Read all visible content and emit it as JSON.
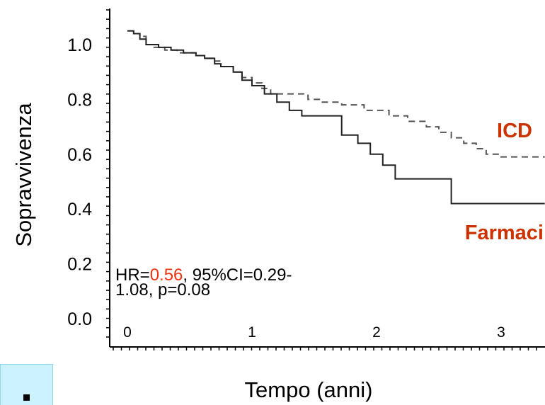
{
  "chart_data": {
    "type": "line",
    "xlabel": "Tempo (anni)",
    "ylabel": "Sopravvivenza",
    "xlim": [
      0,
      3.35
    ],
    "ylim": [
      0,
      1.05
    ],
    "x_ticks": [
      "0",
      "1",
      "2",
      "3"
    ],
    "y_ticks": [
      "0.0",
      "0.2",
      "0.4",
      "0.6",
      "0.8",
      "1.0"
    ],
    "series": [
      {
        "name": "ICD",
        "style": "dashed",
        "color": "#555555",
        "label_color": "#cc3300",
        "points": [
          [
            0.0,
            1.05
          ],
          [
            0.05,
            1.04
          ],
          [
            0.1,
            1.03
          ],
          [
            0.15,
            1.0
          ],
          [
            0.2,
            0.99
          ],
          [
            0.3,
            0.98
          ],
          [
            0.4,
            0.97
          ],
          [
            0.5,
            0.97
          ],
          [
            0.55,
            0.96
          ],
          [
            0.62,
            0.95
          ],
          [
            0.7,
            0.94
          ],
          [
            0.75,
            0.92
          ],
          [
            0.85,
            0.9
          ],
          [
            0.92,
            0.88
          ],
          [
            1.0,
            0.86
          ],
          [
            1.08,
            0.84
          ],
          [
            1.15,
            0.82
          ],
          [
            1.3,
            0.82
          ],
          [
            1.45,
            0.8
          ],
          [
            1.55,
            0.79
          ],
          [
            1.65,
            0.79
          ],
          [
            1.72,
            0.78
          ],
          [
            1.8,
            0.78
          ],
          [
            1.9,
            0.76
          ],
          [
            2.1,
            0.74
          ],
          [
            2.25,
            0.72
          ],
          [
            2.4,
            0.7
          ],
          [
            2.5,
            0.68
          ],
          [
            2.6,
            0.66
          ],
          [
            2.7,
            0.64
          ],
          [
            2.8,
            0.62
          ],
          [
            2.88,
            0.6
          ],
          [
            3.0,
            0.59
          ],
          [
            3.35,
            0.59
          ]
        ]
      },
      {
        "name": "Farmaci",
        "style": "solid",
        "color": "#222222",
        "label_color": "#cc3300",
        "points": [
          [
            0.0,
            1.05
          ],
          [
            0.05,
            1.04
          ],
          [
            0.1,
            1.02
          ],
          [
            0.15,
            1.0
          ],
          [
            0.25,
            0.99
          ],
          [
            0.35,
            0.98
          ],
          [
            0.45,
            0.97
          ],
          [
            0.55,
            0.96
          ],
          [
            0.62,
            0.95
          ],
          [
            0.7,
            0.93
          ],
          [
            0.75,
            0.92
          ],
          [
            0.85,
            0.9
          ],
          [
            0.92,
            0.87
          ],
          [
            1.0,
            0.85
          ],
          [
            1.1,
            0.82
          ],
          [
            1.2,
            0.79
          ],
          [
            1.3,
            0.76
          ],
          [
            1.4,
            0.74
          ],
          [
            1.65,
            0.74
          ],
          [
            1.72,
            0.67
          ],
          [
            1.85,
            0.64
          ],
          [
            1.95,
            0.6
          ],
          [
            2.05,
            0.56
          ],
          [
            2.15,
            0.51
          ],
          [
            2.55,
            0.51
          ],
          [
            2.6,
            0.42
          ],
          [
            3.35,
            0.42
          ]
        ]
      }
    ],
    "annotation": {
      "line1_prefix": "HR=",
      "line1_hr": "0.56",
      "line1_suffix": ", 95%CI=0.29-",
      "line2": "1.08, p=0.08",
      "hr_color": "#ee3311"
    }
  }
}
